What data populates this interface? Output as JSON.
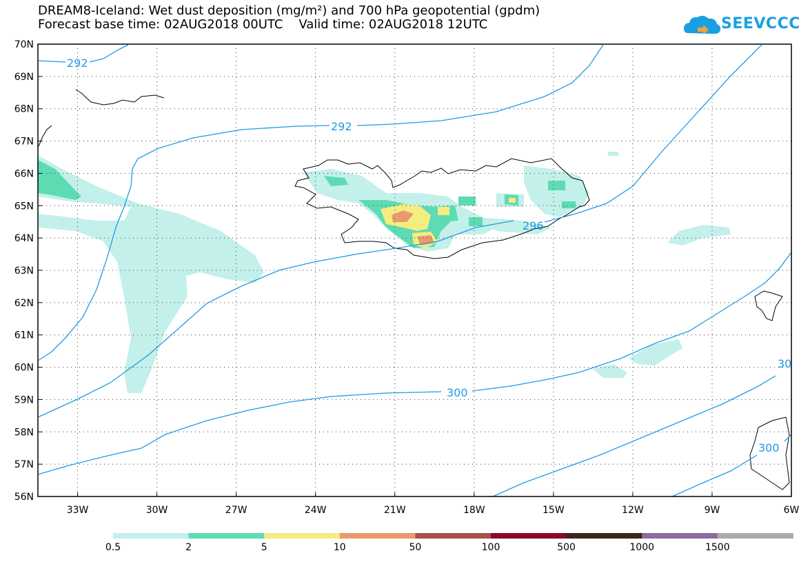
{
  "header": {
    "title_line1": "DREAM8-Iceland: Wet dust deposition (mg/m²) and 700 hPa geopotential (gpdm)",
    "title_line2": "Forecast base time: 02AUG2018 00UTC    Valid time: 02AUG2018 12UTC",
    "logo_text": "SEEVCCC",
    "logo_icon": "cloud-icon"
  },
  "map": {
    "lon_labels": [
      "33W",
      "30W",
      "27W",
      "24W",
      "21W",
      "18W",
      "15W",
      "12W",
      "9W",
      "6W"
    ],
    "lat_labels": [
      "70N",
      "69N",
      "68N",
      "67N",
      "66N",
      "65N",
      "64N",
      "63N",
      "62N",
      "61N",
      "60N",
      "59N",
      "58N",
      "57N",
      "56N"
    ],
    "lon_range": [
      -34.5,
      -6
    ],
    "lat_range": [
      56,
      70
    ],
    "contour_color": "#1e9be6",
    "contour_labels": [
      "292",
      "292",
      "296",
      "300",
      "30",
      "300"
    ],
    "grid": "dotted"
  },
  "colorbar": {
    "labels": [
      "0.5",
      "2",
      "5",
      "10",
      "50",
      "100",
      "500",
      "1000",
      "1500"
    ],
    "colors": [
      "#c3f0ea",
      "#5ddcb4",
      "#f5ec82",
      "#ea9a6e",
      "#a8524a",
      "#880a2a",
      "#3a2818",
      "#8e6aa0",
      "#aaaaaa"
    ]
  }
}
